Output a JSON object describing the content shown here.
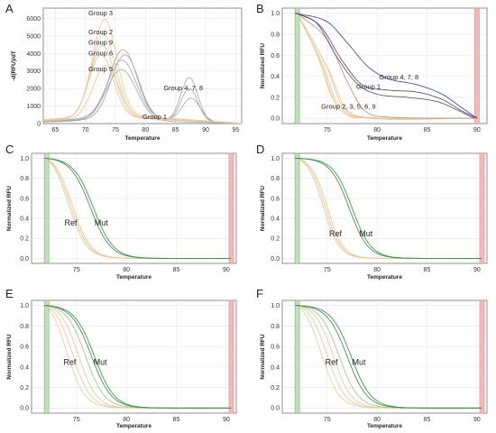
{
  "colors": {
    "grey": "#a9a9ad",
    "tan": "#e9c89a",
    "purple": "#5a4f7e",
    "blue": "#3e4aa8",
    "red_curve": "#c98a7a",
    "green": "#3c8f47",
    "light_green": "#9bc48e",
    "green_band": "#bfe2b8",
    "red_band": "#f6b9b9"
  },
  "chart_data": [
    {
      "panel": "A",
      "type": "line",
      "xlabel": "Temperature",
      "ylabel": "-d(RFU)/dT",
      "xlim": [
        63,
        96
      ],
      "ylim": [
        0,
        6600
      ],
      "xticks": [
        65,
        70,
        75,
        80,
        85,
        90,
        95
      ],
      "yticks": [
        0,
        1000,
        2000,
        3000,
        4000,
        5000,
        6000
      ],
      "annotations": [
        {
          "text": "Group 3",
          "x": 70.5,
          "y": 6200
        },
        {
          "text": "Group 2",
          "x": 70.5,
          "y": 5100
        },
        {
          "text": "Group 9",
          "x": 70.5,
          "y": 4500
        },
        {
          "text": "Group 6",
          "x": 70.5,
          "y": 3900
        },
        {
          "text": "Group 5",
          "x": 70.5,
          "y": 3000
        },
        {
          "text": "Group 4,   7,   8",
          "x": 83,
          "y": 1900
        },
        {
          "text": "Group 1",
          "x": 79.5,
          "y": 250
        }
      ],
      "series": [
        {
          "color": "grey",
          "base": 300,
          "peaks": [
            [
              76.3,
              3950,
              2.3
            ],
            [
              87.3,
              2500,
              1.4
            ]
          ]
        },
        {
          "color": "grey",
          "base": 250,
          "peaks": [
            [
              76.6,
              3700,
              2.3
            ],
            [
              87.3,
              1900,
              1.4
            ]
          ]
        },
        {
          "color": "grey",
          "base": 350,
          "peaks": [
            [
              76.1,
              3300,
              2.4
            ],
            [
              87.6,
              1300,
              1.5
            ]
          ]
        },
        {
          "color": "grey",
          "base": 200,
          "peaks": [
            [
              76.0,
              2900,
              2.5
            ]
          ]
        },
        {
          "color": "tan",
          "base": 500,
          "peaks": [
            [
              73.2,
              5500,
              2.0
            ]
          ]
        },
        {
          "color": "tan",
          "base": 450,
          "peaks": [
            [
              73.0,
              4700,
              2.0
            ]
          ]
        },
        {
          "color": "tan",
          "base": 400,
          "peaks": [
            [
              72.8,
              4100,
              2.0
            ]
          ]
        },
        {
          "color": "tan",
          "base": 380,
          "peaks": [
            [
              72.6,
              3600,
              2.0
            ]
          ]
        },
        {
          "color": "tan",
          "base": 350,
          "peaks": [
            [
              73.4,
              3000,
              2.1
            ]
          ]
        }
      ]
    },
    {
      "panel": "B",
      "type": "line",
      "xlabel": "Temperature",
      "ylabel": "Normalized RFU",
      "xlim": [
        70.5,
        91
      ],
      "ylim": [
        -0.05,
        1.05
      ],
      "xticks": [
        75,
        80,
        85,
        90
      ],
      "yticks": [
        0.0,
        0.2,
        0.4,
        0.6,
        0.8,
        1.0
      ],
      "bands": {
        "green": 72,
        "red": 90
      },
      "annotations": [
        {
          "text": "Group 4, 7, 8",
          "x": 80.2,
          "y": 0.37
        },
        {
          "text": "Group 1",
          "x": 77.9,
          "y": 0.28
        },
        {
          "text": "Group 2, 3, 5, 6, 9",
          "x": 74.4,
          "y": 0.09
        }
      ],
      "series": [
        {
          "color": "tan",
          "knots": [
            [
              72,
              1
            ],
            [
              74,
              0.6
            ],
            [
              75.5,
              0.2
            ],
            [
              77,
              0.03
            ],
            [
              79,
              0.005
            ],
            [
              90,
              0
            ]
          ]
        },
        {
          "color": "tan",
          "knots": [
            [
              72,
              1
            ],
            [
              74.3,
              0.55
            ],
            [
              75.8,
              0.15
            ],
            [
              77.5,
              0.02
            ],
            [
              90,
              0
            ]
          ]
        },
        {
          "color": "tan",
          "knots": [
            [
              72,
              1
            ],
            [
              74.6,
              0.5
            ],
            [
              76,
              0.15
            ],
            [
              78,
              0.01
            ],
            [
              90,
              0
            ]
          ]
        },
        {
          "color": "tan",
          "knots": [
            [
              72,
              1
            ],
            [
              74.9,
              0.5
            ],
            [
              76.5,
              0.12
            ],
            [
              78.5,
              0.01
            ],
            [
              90,
              0
            ]
          ]
        },
        {
          "color": "tan",
          "knots": [
            [
              72,
              1
            ],
            [
              75.2,
              0.45
            ],
            [
              76.8,
              0.1
            ],
            [
              79,
              0.01
            ],
            [
              90,
              0
            ]
          ]
        },
        {
          "color": "red_curve",
          "knots": [
            [
              72,
              1
            ],
            [
              75,
              0.75
            ],
            [
              77,
              0.35
            ],
            [
              78.5,
              0.1
            ],
            [
              80,
              0.02
            ],
            [
              90,
              0
            ]
          ]
        },
        {
          "color": "purple",
          "knots": [
            [
              72,
              1
            ],
            [
              74,
              0.9
            ],
            [
              76,
              0.58
            ],
            [
              78,
              0.33
            ],
            [
              80,
              0.23
            ],
            [
              83,
              0.2
            ],
            [
              86,
              0.16
            ],
            [
              88,
              0.08
            ],
            [
              89.5,
              0.01
            ]
          ]
        },
        {
          "color": "purple",
          "knots": [
            [
              72,
              1
            ],
            [
              74.3,
              0.88
            ],
            [
              76.5,
              0.55
            ],
            [
              78.5,
              0.32
            ],
            [
              81,
              0.27
            ],
            [
              84,
              0.25
            ],
            [
              86.5,
              0.18
            ],
            [
              88.5,
              0.07
            ],
            [
              89.8,
              0.01
            ]
          ]
        },
        {
          "color": "blue",
          "knots": [
            [
              72,
              1
            ],
            [
              75,
              0.92
            ],
            [
              77,
              0.72
            ],
            [
              79,
              0.5
            ],
            [
              81,
              0.38
            ],
            [
              84,
              0.32
            ],
            [
              86.5,
              0.23
            ],
            [
              88.5,
              0.1
            ],
            [
              90,
              0
            ]
          ]
        }
      ]
    },
    {
      "panel": "C",
      "type": "line",
      "xlabel": "Temperature",
      "ylabel": "Normalized RFU",
      "xlim": [
        70.5,
        91
      ],
      "ylim": [
        -0.05,
        1.05
      ],
      "xticks": [
        75,
        80,
        85,
        90
      ],
      "yticks": [
        0.0,
        0.2,
        0.4,
        0.6,
        0.8,
        1.0
      ],
      "bands": {
        "green": 72,
        "red": 90.5
      },
      "annotations": [
        {
          "text": "Ref",
          "x": 73.8,
          "y": 0.33
        },
        {
          "text": "Mut",
          "x": 76.8,
          "y": 0.33
        }
      ],
      "series": [
        {
          "color": "tan",
          "sigmoid": [
            74.2,
            0.9
          ]
        },
        {
          "color": "tan",
          "sigmoid": [
            74.4,
            0.9
          ]
        },
        {
          "color": "tan",
          "sigmoid": [
            74.6,
            0.9
          ]
        },
        {
          "color": "green",
          "sigmoid": [
            76.4,
            1.0
          ]
        },
        {
          "color": "green",
          "sigmoid": [
            76.7,
            1.0
          ]
        }
      ]
    },
    {
      "panel": "D",
      "type": "line",
      "xlabel": "Temperature",
      "ylabel": "Normalized RFU",
      "xlim": [
        70.5,
        91
      ],
      "ylim": [
        -0.05,
        1.05
      ],
      "xticks": [
        75,
        80,
        85,
        90
      ],
      "yticks": [
        0.0,
        0.2,
        0.4,
        0.6,
        0.8,
        1.0
      ],
      "bands": {
        "green": 72,
        "red": 90.5
      },
      "annotations": [
        {
          "text": "Ref",
          "x": 75.2,
          "y": 0.22
        },
        {
          "text": "Mut",
          "x": 78.2,
          "y": 0.22
        }
      ],
      "series": [
        {
          "color": "tan",
          "sigmoid": [
            74.6,
            0.8
          ]
        },
        {
          "color": "tan",
          "sigmoid": [
            74.8,
            0.8
          ]
        },
        {
          "color": "tan",
          "sigmoid": [
            75.0,
            0.8
          ]
        },
        {
          "color": "green",
          "sigmoid": [
            77.2,
            0.95
          ]
        },
        {
          "color": "green",
          "sigmoid": [
            77.5,
            0.95
          ]
        }
      ]
    },
    {
      "panel": "E",
      "type": "line",
      "xlabel": "Temperature",
      "ylabel": "Normalized RFU",
      "xlim": [
        70.5,
        91
      ],
      "ylim": [
        -0.05,
        1.05
      ],
      "xticks": [
        75,
        80,
        85,
        90
      ],
      "yticks": [
        0.0,
        0.2,
        0.4,
        0.6,
        0.8,
        1.0
      ],
      "bands": {
        "green": 72,
        "red": 90.5
      },
      "annotations": [
        {
          "text": "Ref",
          "x": 73.7,
          "y": 0.42
        },
        {
          "text": "Mut",
          "x": 76.7,
          "y": 0.42
        }
      ],
      "series": [
        {
          "color": "tan",
          "sigmoid": [
            74.0,
            0.9
          ]
        },
        {
          "color": "tan",
          "sigmoid": [
            74.6,
            0.9
          ]
        },
        {
          "color": "tan",
          "sigmoid": [
            75.2,
            0.9
          ]
        },
        {
          "color": "light_green",
          "sigmoid": [
            75.9,
            0.95
          ]
        },
        {
          "color": "green",
          "sigmoid": [
            76.5,
            1.0
          ]
        },
        {
          "color": "green",
          "sigmoid": [
            76.8,
            1.0
          ]
        }
      ]
    },
    {
      "panel": "F",
      "type": "line",
      "xlabel": "Temperature",
      "ylabel": "Normalized RFU",
      "xlim": [
        70.5,
        91
      ],
      "ylim": [
        -0.05,
        1.05
      ],
      "xticks": [
        75,
        80,
        85,
        90
      ],
      "yticks": [
        0.0,
        0.2,
        0.4,
        0.6,
        0.8,
        1.0
      ],
      "bands": {
        "green": 72,
        "red": 90.5
      },
      "annotations": [
        {
          "text": "Ref",
          "x": 74.8,
          "y": 0.42
        },
        {
          "text": "Mut",
          "x": 77.5,
          "y": 0.42
        }
      ],
      "series": [
        {
          "color": "tan",
          "sigmoid": [
            74.4,
            0.9
          ]
        },
        {
          "color": "tan",
          "sigmoid": [
            75.0,
            0.9
          ]
        },
        {
          "color": "tan",
          "sigmoid": [
            75.6,
            0.9
          ]
        },
        {
          "color": "light_green",
          "sigmoid": [
            76.2,
            0.95
          ]
        },
        {
          "color": "green",
          "sigmoid": [
            77.0,
            1.0
          ]
        },
        {
          "color": "green",
          "sigmoid": [
            77.4,
            1.0
          ]
        }
      ]
    }
  ]
}
